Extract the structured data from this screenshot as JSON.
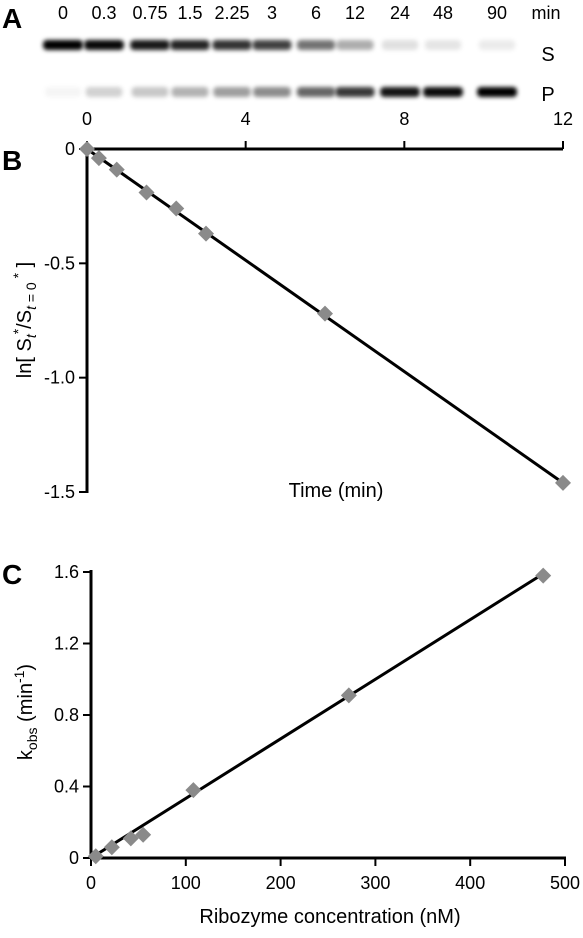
{
  "panels": {
    "a_label": "A",
    "b_label": "B",
    "c_label": "C"
  },
  "gel": {
    "lane_labels": [
      "0",
      "0.3",
      "0.75",
      "1.5",
      "2.25",
      "3",
      "6",
      "12",
      "24",
      "48",
      "90"
    ],
    "unit_label": "min",
    "band_labels": {
      "substrate": "S",
      "product": "P"
    },
    "substrate_intensity": [
      1.0,
      0.97,
      0.9,
      0.86,
      0.8,
      0.75,
      0.55,
      0.32,
      0.12,
      0.1,
      0.08
    ],
    "product_intensity": [
      0.04,
      0.18,
      0.22,
      0.3,
      0.38,
      0.45,
      0.6,
      0.78,
      0.92,
      0.96,
      1.0
    ]
  },
  "chart_data": [
    {
      "type": "scatter",
      "panel": "B",
      "xlabel": "Time (min)",
      "ylabel": "ln[ St*/St=0* ]",
      "xlim": [
        0,
        12
      ],
      "ylim": [
        -1.5,
        0
      ],
      "x_ticks": [
        0,
        4,
        8,
        12
      ],
      "y_ticks": [
        0,
        -0.5,
        -1.0,
        -1.5
      ],
      "y_tick_labels": [
        "0",
        "-0.5",
        "-1.0",
        "-1.5"
      ],
      "x_axis_position": "top",
      "grid": false,
      "marker": "diamond",
      "marker_color": "#8a8a8a",
      "points": [
        {
          "x": 0,
          "y": 0
        },
        {
          "x": 0.3,
          "y": -0.04
        },
        {
          "x": 0.75,
          "y": -0.09
        },
        {
          "x": 1.5,
          "y": -0.19
        },
        {
          "x": 2.25,
          "y": -0.26
        },
        {
          "x": 3,
          "y": -0.37
        },
        {
          "x": 6,
          "y": -0.72
        },
        {
          "x": 12,
          "y": -1.46
        }
      ],
      "fit_line": {
        "x": [
          0,
          12
        ],
        "y": [
          0,
          -1.46
        ]
      }
    },
    {
      "type": "scatter",
      "panel": "C",
      "xlabel": "Ribozyme concentration (nM)",
      "ylabel": "kobs (min-1)",
      "xlim": [
        0,
        500
      ],
      "ylim": [
        0,
        1.6
      ],
      "x_ticks": [
        0,
        100,
        200,
        300,
        400,
        500
      ],
      "y_ticks": [
        0,
        0.4,
        0.8,
        1.2,
        1.6
      ],
      "y_tick_labels": [
        "0",
        "0.4",
        "0.8",
        "1.2",
        "1.6"
      ],
      "grid": false,
      "marker": "diamond",
      "marker_color": "#8a8a8a",
      "points": [
        {
          "x": 5,
          "y": 0.01
        },
        {
          "x": 22,
          "y": 0.06
        },
        {
          "x": 42,
          "y": 0.11
        },
        {
          "x": 55,
          "y": 0.13
        },
        {
          "x": 108,
          "y": 0.38
        },
        {
          "x": 272,
          "y": 0.91
        },
        {
          "x": 477,
          "y": 1.58
        }
      ],
      "fit_line": {
        "x": [
          0,
          480
        ],
        "y": [
          0,
          1.6
        ]
      }
    }
  ]
}
